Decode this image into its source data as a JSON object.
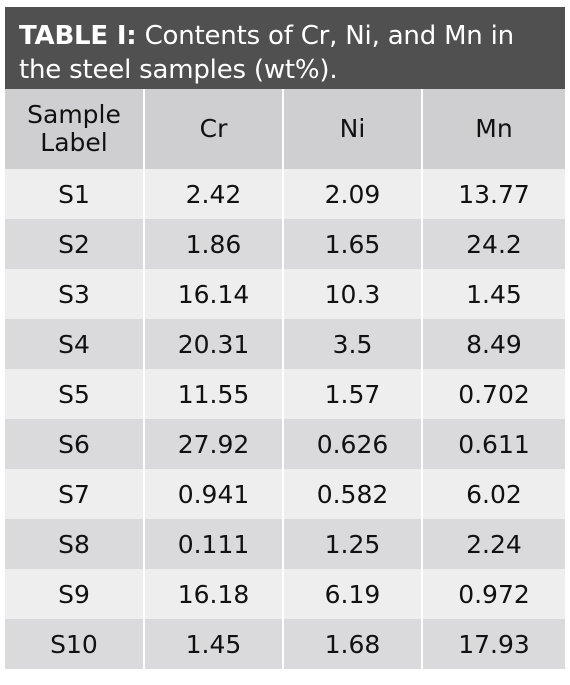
{
  "title": {
    "prefix": "TABLE I:",
    "text": " Contents of Cr, Ni, and Mn in the steel samples (wt%)."
  },
  "headers": [
    "Sample Label",
    "Cr",
    "Ni",
    "Mn"
  ],
  "rows": [
    [
      "S1",
      "2.42",
      "2.09",
      "13.77"
    ],
    [
      "S2",
      "1.86",
      "1.65",
      "24.2"
    ],
    [
      "S3",
      "16.14",
      "10.3",
      "1.45"
    ],
    [
      "S4",
      "20.31",
      "3.5",
      "8.49"
    ],
    [
      "S5",
      "11.55",
      "1.57",
      "0.702"
    ],
    [
      "S6",
      "27.92",
      "0.626",
      "0.611"
    ],
    [
      "S7",
      "0.941",
      "0.582",
      "6.02"
    ],
    [
      "S8",
      "0.111",
      "1.25",
      "2.24"
    ],
    [
      "S9",
      "16.18",
      "6.19",
      "0.972"
    ],
    [
      "S10",
      "1.45",
      "1.68",
      "17.93"
    ]
  ],
  "colors": {
    "title_bg": "#505050",
    "header_bg": "#cfcfd1",
    "row_light": "#eeeeef",
    "row_dark": "#dadadc"
  }
}
